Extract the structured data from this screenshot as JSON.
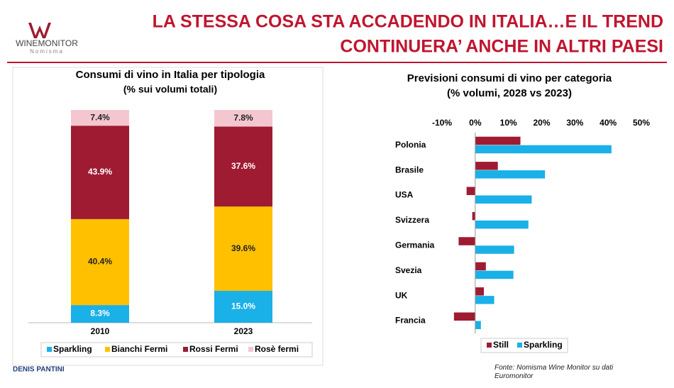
{
  "header": {
    "logo": "WINEMONITOR",
    "logo_sub": "Nomisma",
    "title_lines": [
      "LA STESSA COSA STA ACCADENDO IN ITALIA…E IL TREND",
      "CONTINUERA’ ANCHE IN ALTRI PAESI"
    ]
  },
  "chart_data": [
    {
      "type": "bar",
      "stacked": true,
      "title": "Consumi di vino in Italia per tipologia",
      "subtitle": "(% sui volumi totali)",
      "categories": [
        "2010",
        "2023"
      ],
      "series": [
        {
          "name": "Sparkling",
          "color": "#1ab0e8",
          "values": [
            8.3,
            15.0
          ],
          "value_labels": [
            "8.3%",
            "15.0%"
          ]
        },
        {
          "name": "Bianchi Fermi",
          "color": "#ffc000",
          "values": [
            40.4,
            39.6
          ],
          "value_labels": [
            "40.4%",
            "39.6%"
          ]
        },
        {
          "name": "Rossi Fermi",
          "color": "#9e1b32",
          "values": [
            43.9,
            37.6
          ],
          "value_labels": [
            "43.9%",
            "37.6%"
          ]
        },
        {
          "name": "Rosè fermi",
          "color": "#f4c7d0",
          "values": [
            7.4,
            7.8
          ],
          "value_labels": [
            "7.4%",
            "7.8%"
          ]
        }
      ],
      "legend": "bottom"
    },
    {
      "type": "bar",
      "orientation": "horizontal",
      "title": "Previsioni consumi di vino per categoria",
      "subtitle": "(% volumi, 2028 vs 2023)",
      "categories": [
        "Polonia",
        "Brasile",
        "USA",
        "Svizzera",
        "Germania",
        "Svezia",
        "UK",
        "Francia"
      ],
      "series": [
        {
          "name": "Still",
          "color": "#9e1b32",
          "values": [
            13.6,
            6.8,
            -2.6,
            -0.9,
            -5,
            3.2,
            2.6,
            -6.4
          ]
        },
        {
          "name": "Sparkling",
          "color": "#1ab0e8",
          "values": [
            41,
            21,
            17,
            16,
            11.7,
            11.5,
            5.7,
            1.7
          ]
        }
      ],
      "xlim": [
        -10,
        50
      ],
      "xticks": [
        {
          "value": -10,
          "label": "-10%"
        },
        {
          "value": 0,
          "label": "0%"
        },
        {
          "value": 10,
          "label": "10%"
        },
        {
          "value": 20,
          "label": "20%"
        },
        {
          "value": 30,
          "label": "30%"
        },
        {
          "value": 40,
          "label": "40%"
        },
        {
          "value": 50,
          "label": "50%"
        }
      ],
      "legend": "bottom"
    }
  ],
  "footer": {
    "author": "DENIS PANTINI",
    "source": "Fonte: Nomisma Wine Monitor su dati Euromonitor"
  }
}
